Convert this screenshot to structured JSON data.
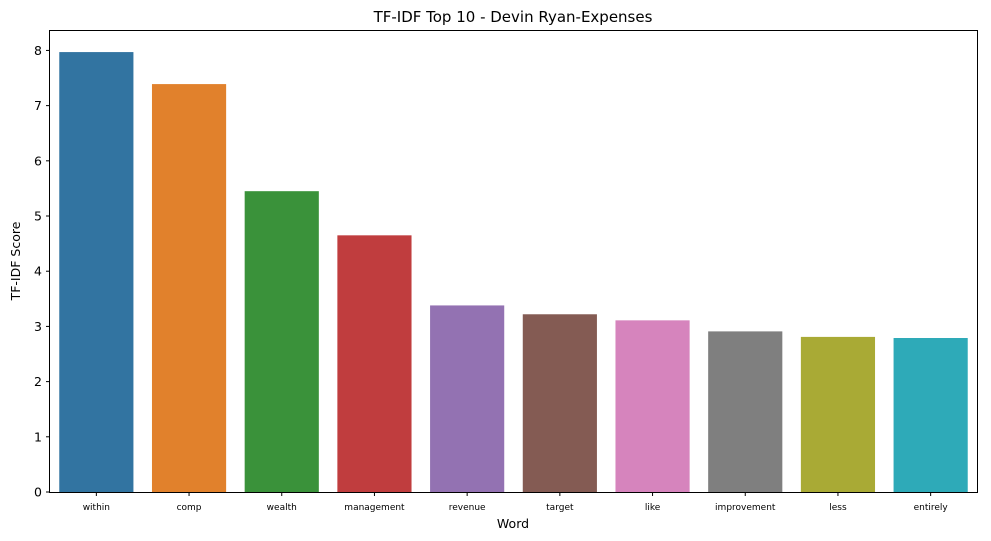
{
  "chart_data": {
    "type": "bar",
    "title": "TF-IDF Top 10 - Devin Ryan-Expenses",
    "xlabel": "Word",
    "ylabel": "TF-IDF Score",
    "categories": [
      "within",
      "comp",
      "wealth",
      "management",
      "revenue",
      "target",
      "like",
      "improvement",
      "less",
      "entirely"
    ],
    "values": [
      7.97,
      7.39,
      5.45,
      4.65,
      3.38,
      3.22,
      3.11,
      2.91,
      2.81,
      2.79
    ],
    "colors": [
      "#3274a1",
      "#e1812c",
      "#3a923a",
      "#c03d3e",
      "#9372b2",
      "#845b53",
      "#d684bd",
      "#7f7f7f",
      "#a9aa35",
      "#2eaab8"
    ],
    "yticks": [
      0,
      1,
      2,
      3,
      4,
      5,
      6,
      7,
      8
    ],
    "ylim": [
      0,
      8.37
    ],
    "grid": false,
    "legend": "none"
  }
}
